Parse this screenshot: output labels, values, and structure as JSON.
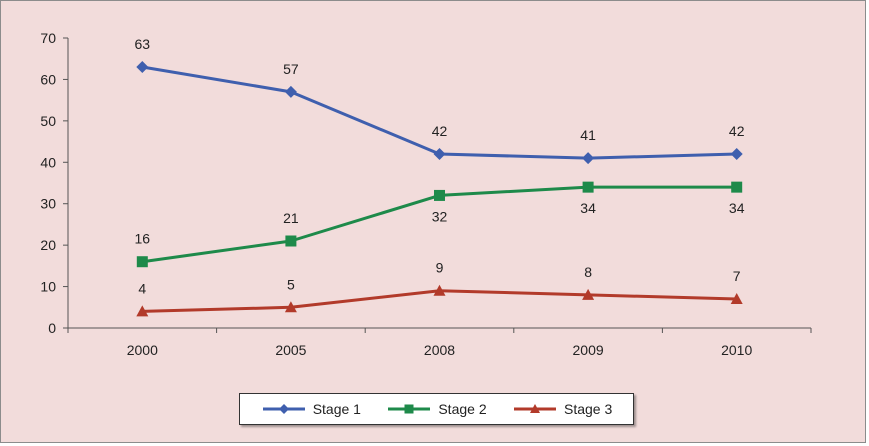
{
  "chart_data": {
    "type": "line",
    "title": "",
    "xlabel": "",
    "ylabel": "",
    "categories": [
      "2000",
      "2005",
      "2008",
      "2009",
      "2010"
    ],
    "ylim": [
      0,
      70
    ],
    "yticks": [
      0,
      10,
      20,
      30,
      40,
      50,
      60,
      70
    ],
    "grid": false,
    "legend_position": "bottom",
    "series": [
      {
        "name": "Stage 1",
        "values": [
          63,
          57,
          42,
          41,
          42
        ],
        "color": "#3f5fae",
        "marker": "diamond",
        "label_position": "above"
      },
      {
        "name": "Stage 2",
        "values": [
          16,
          21,
          32,
          34,
          34
        ],
        "color": "#1e8a4a",
        "marker": "square",
        "label_position": "mixed"
      },
      {
        "name": "Stage 3",
        "values": [
          4,
          5,
          9,
          8,
          7
        ],
        "color": "#b23a2a",
        "marker": "triangle",
        "label_position": "above"
      }
    ],
    "background_color": "#f2dcdb"
  }
}
